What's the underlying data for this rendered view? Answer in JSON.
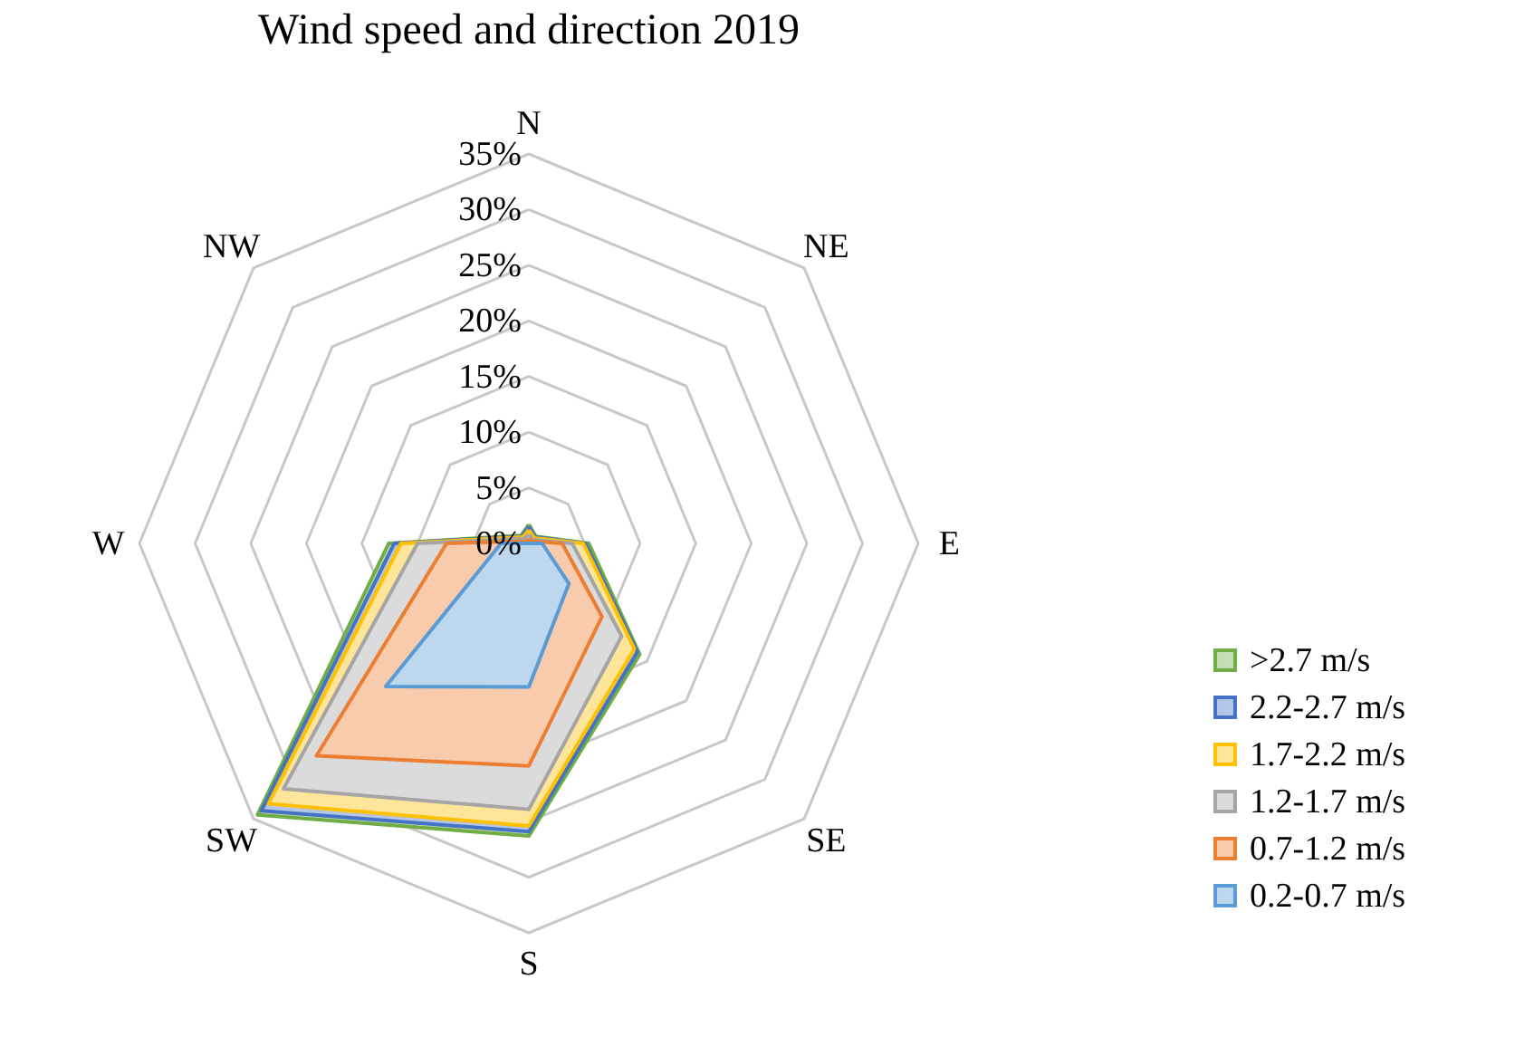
{
  "chart_data": {
    "type": "radar",
    "title": "Wind speed and direction 2019",
    "categories": [
      "N",
      "NE",
      "E",
      "SE",
      "S",
      "SW",
      "W",
      "NW"
    ],
    "ylim": [
      0,
      35
    ],
    "yticks": [
      {
        "value": 0,
        "label": "0%"
      },
      {
        "value": 5,
        "label": "5%"
      },
      {
        "value": 10,
        "label": "10%"
      },
      {
        "value": 15,
        "label": "15%"
      },
      {
        "value": 20,
        "label": "20%"
      },
      {
        "value": 25,
        "label": "25%"
      },
      {
        "value": 30,
        "label": "30%"
      },
      {
        "value": 35,
        "label": "35%"
      }
    ],
    "grid": true,
    "legend": "bottom right",
    "series": [
      {
        "name": ">2.7 m/s",
        "color": "#70ad47",
        "values": [
          1.7,
          0.9,
          5.4,
          14.1,
          26.3,
          34.5,
          12.6,
          1.0
        ]
      },
      {
        "name": "2.2-2.7 m/s",
        "color": "#4472c4",
        "values": [
          1.5,
          0.8,
          5.1,
          13.8,
          25.9,
          34.0,
          12.1,
          0.9
        ]
      },
      {
        "name": "1.7-2.2 m/s",
        "color": "#ffc000",
        "values": [
          1.2,
          0.7,
          4.9,
          13.4,
          25.4,
          33.1,
          11.5,
          0.8
        ]
      },
      {
        "name": "1.2-1.7 m/s",
        "color": "#a5a5a5",
        "values": [
          0.8,
          0.5,
          3.9,
          11.8,
          23.9,
          31.2,
          10.0,
          0.6
        ]
      },
      {
        "name": "0.7-1.2 m/s",
        "color": "#ed7d31",
        "values": [
          0.4,
          0.3,
          3.0,
          9.3,
          20.0,
          27.0,
          7.4,
          0.3
        ]
      },
      {
        "name": "0.2-0.7 m/s",
        "color": "#5b9bd5",
        "values": [
          0,
          0,
          1.2,
          5.1,
          12.9,
          18.2,
          2.5,
          0
        ]
      }
    ]
  }
}
